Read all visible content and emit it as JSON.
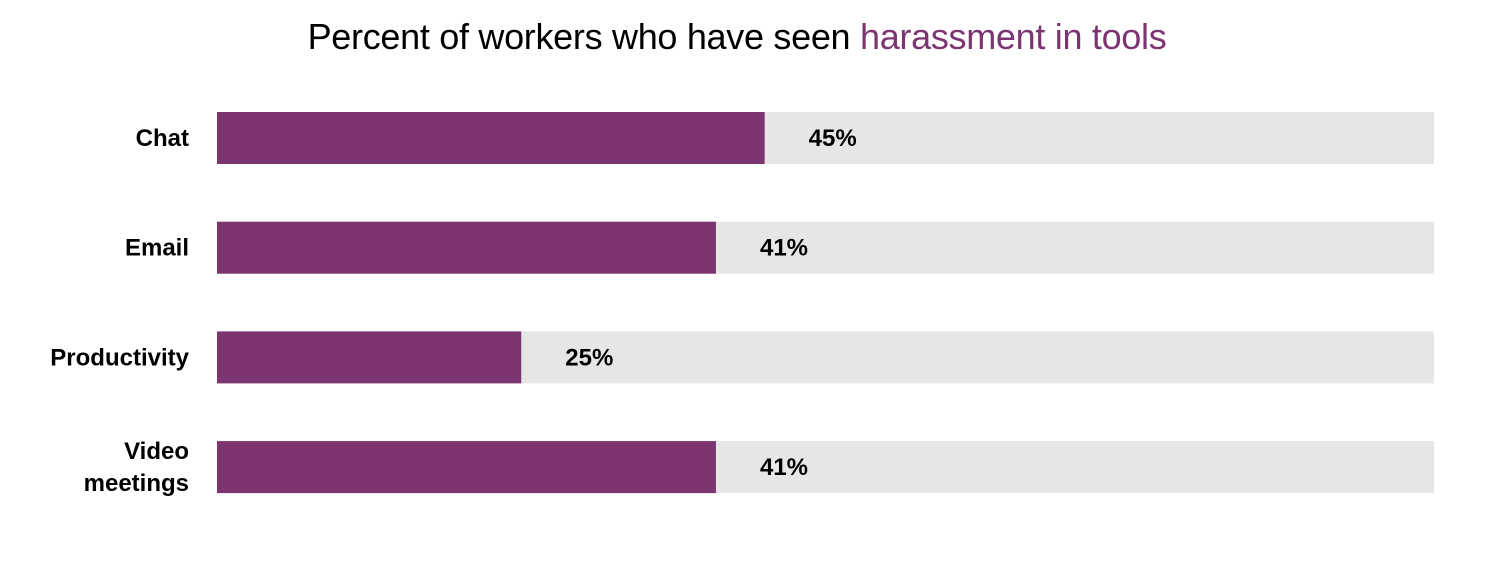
{
  "chart_data": {
    "type": "bar",
    "orientation": "horizontal",
    "title_parts": {
      "prefix": "Percent of workers who have seen ",
      "highlight": "harassment in tools"
    },
    "categories": [
      [
        "Chat"
      ],
      [
        "Email"
      ],
      [
        "Productivity"
      ],
      [
        "Video",
        "meetings"
      ]
    ],
    "values": [
      45,
      41,
      25,
      41
    ],
    "value_labels": [
      "45%",
      "41%",
      "25%",
      "41%"
    ],
    "xlim": [
      0,
      100
    ],
    "xlabel": "",
    "ylabel": "",
    "grid": false,
    "legend": "none",
    "colors": {
      "bar": "#7d3572",
      "track": "#e6e6e6",
      "highlight_text": "#7d3572"
    }
  }
}
